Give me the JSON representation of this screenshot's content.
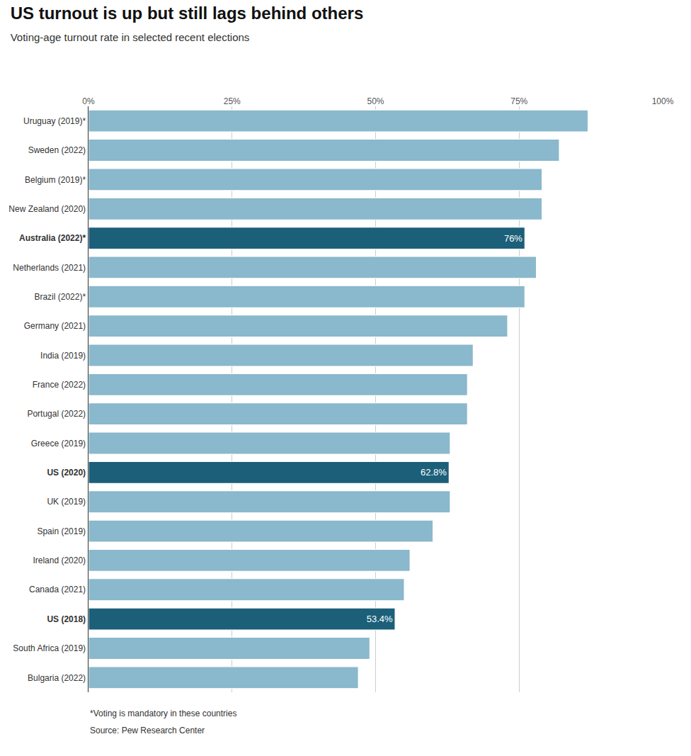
{
  "chart_data": {
    "type": "bar",
    "orientation": "horizontal",
    "title": "US turnout is up but still lags behind others",
    "subtitle": "Voting-age turnout rate in selected recent elections",
    "annotations": [
      "*Voting is mandatory in these countries",
      "Source: Pew Research Center"
    ],
    "categories": [
      "Uruguay (2019)*",
      "Sweden (2022)",
      "Belgium (2019)*",
      "New Zealand (2020)",
      "Australia (2022)*",
      "Netherlands (2021)",
      "Brazil (2022)*",
      "Germany (2021)",
      "India (2019)",
      "France (2022)",
      "Portugal (2022)",
      "Greece (2019)",
      "US (2020)",
      "UK (2019)",
      "Spain (2019)",
      "Ireland (2020)",
      "Canada (2021)",
      "US (2018)",
      "South Africa (2019)",
      "Bulgaria (2022)"
    ],
    "values": [
      87,
      82,
      79,
      79,
      76,
      78,
      76,
      73,
      67,
      66,
      66,
      63,
      62.8,
      63,
      60,
      56,
      55,
      53.4,
      49,
      47
    ],
    "value_labels": [
      null,
      null,
      null,
      null,
      "76%",
      null,
      null,
      null,
      null,
      null,
      null,
      null,
      "62.8%",
      null,
      null,
      null,
      null,
      "53.4%",
      null,
      null
    ],
    "colors": [
      "#8ab8cc",
      "#8ab8cc",
      "#8ab8cc",
      "#8ab8cc",
      "#1b5f79",
      "#8ab8cc",
      "#8ab8cc",
      "#8ab8cc",
      "#8ab8cc",
      "#8ab8cc",
      "#8ab8cc",
      "#8ab8cc",
      "#1b5f79",
      "#8ab8cc",
      "#8ab8cc",
      "#8ab8cc",
      "#8ab8cc",
      "#1b5f79",
      "#8ab8cc",
      "#8ab8cc"
    ],
    "xlim": [
      0,
      100
    ],
    "xticks": [
      {
        "value": 0,
        "label": "0%"
      },
      {
        "value": 25,
        "label": "25%"
      },
      {
        "value": 50,
        "label": "50%"
      },
      {
        "value": 75,
        "label": "75%"
      },
      {
        "value": 100,
        "label": "100%"
      }
    ],
    "grid": true
  }
}
